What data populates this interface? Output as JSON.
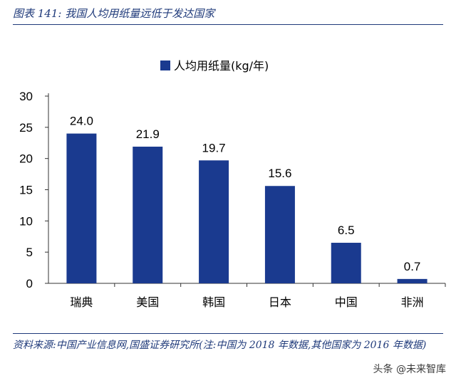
{
  "header": {
    "title": "图表 141:  我国人均用纸量远低于发达国家"
  },
  "footer": {
    "source": "资料来源:中国产业信息网,国盛证券研究所(注:中国为 2018 年数据,其他国家为 2016 年数据)",
    "watermark": "头条 @未来智库"
  },
  "colors": {
    "bar": "#1a3a8f",
    "text": "#000000",
    "accent": "#1f3a7a"
  },
  "chart_data": {
    "type": "bar",
    "categories": [
      "瑞典",
      "美国",
      "韩国",
      "日本",
      "中国",
      "非洲"
    ],
    "series": [
      {
        "name": "人均用纸量(kg/年)",
        "values": [
          24.0,
          21.9,
          19.7,
          15.6,
          6.5,
          0.7
        ]
      }
    ],
    "data_labels": [
      "24.0",
      "21.9",
      "19.7",
      "15.6",
      "6.5",
      "0.7"
    ],
    "title": "",
    "xlabel": "",
    "ylabel": "",
    "ylim": [
      0,
      30
    ],
    "yticks": [
      0,
      5,
      10,
      15,
      20,
      25,
      30
    ],
    "grid": false,
    "legend": "top-center"
  }
}
